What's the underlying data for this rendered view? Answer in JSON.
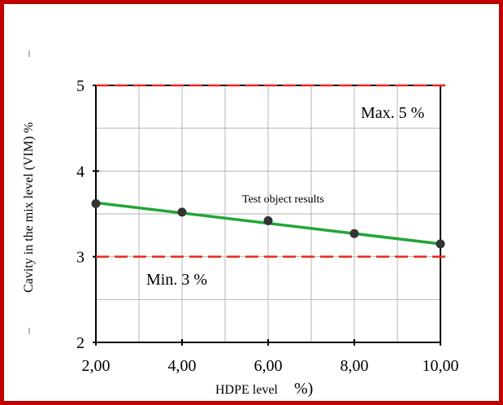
{
  "chart_data": {
    "type": "line",
    "title": "",
    "xlabel": "HDPE level",
    "xlabel_suffix": "%)",
    "ylabel": "Cavity in the mix level (VIM) %",
    "x_ticks": [
      "2,00",
      "4,00",
      "6,00",
      "8,00",
      "10,00"
    ],
    "y_ticks": [
      "2",
      "3",
      "4",
      "5"
    ],
    "xlim": [
      2,
      10
    ],
    "ylim": [
      2,
      5
    ],
    "grid": true,
    "series": [
      {
        "name": "Test object results",
        "x": [
          2,
          4,
          6,
          8,
          10
        ],
        "y": [
          3.62,
          3.52,
          3.42,
          3.27,
          3.15
        ],
        "point_color": "#333333",
        "line_color": "#22a637"
      }
    ],
    "fit_line": {
      "x": [
        2,
        10
      ],
      "y": [
        3.63,
        3.15
      ]
    },
    "reference_lines": [
      {
        "label": "Max. 5 %",
        "y": 5,
        "color": "#e8281e"
      },
      {
        "label": "Min. 3 %",
        "y": 3,
        "color": "#e8281e"
      }
    ],
    "annotation": "Test object results"
  }
}
